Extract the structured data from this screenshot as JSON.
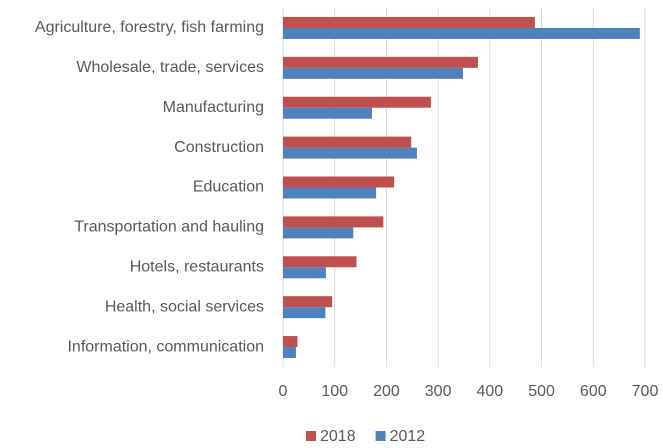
{
  "chart_data": {
    "type": "hbar",
    "categories": [
      "Agriculture, forestry, fish farming",
      "Wholesale, trade, services",
      "Manufacturing",
      "Construction",
      "Education",
      "Transportation and hauling",
      "Hotels, restaurants",
      "Health, social services",
      "Information, communication"
    ],
    "series": [
      {
        "name": "2018",
        "color": "#c0504d",
        "values": [
          487,
          377,
          286,
          248,
          215,
          194,
          142,
          95,
          28
        ]
      },
      {
        "name": "2012",
        "color": "#4f81bd",
        "values": [
          690,
          348,
          172,
          259,
          180,
          136,
          83,
          82,
          25
        ]
      }
    ],
    "xlim": [
      0,
      700
    ],
    "xticks": [
      0,
      100,
      200,
      300,
      400,
      500,
      600,
      700
    ],
    "grid": true,
    "legend": "bottom"
  }
}
